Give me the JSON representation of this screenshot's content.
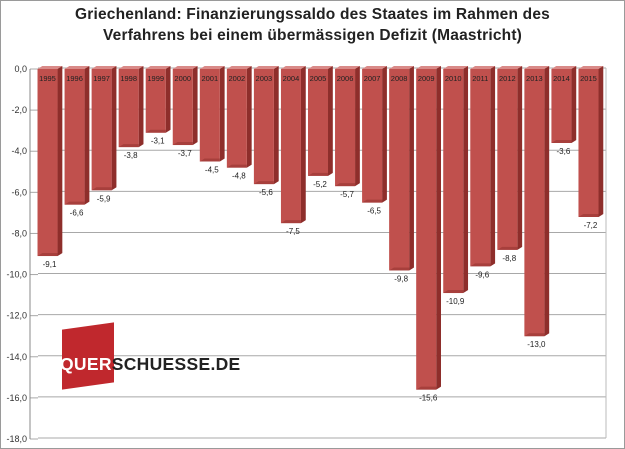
{
  "chart_data": {
    "type": "bar",
    "title_lines": [
      "Griechenland: Finanzierungssaldo des Staates im Rahmen des",
      "Verfahrens bei einem übermässigen Defizit (Maastricht)"
    ],
    "categories": [
      "1995",
      "1996",
      "1997",
      "1998",
      "1999",
      "2000",
      "2001",
      "2002",
      "2003",
      "2004",
      "2005",
      "2006",
      "2007",
      "2008",
      "2009",
      "2010",
      "2011",
      "2012",
      "2013",
      "2014",
      "2015"
    ],
    "values": [
      -9.1,
      -6.6,
      -5.9,
      -3.8,
      -3.1,
      -3.7,
      -4.5,
      -4.8,
      -5.6,
      -7.5,
      -5.2,
      -5.7,
      -6.5,
      -9.8,
      -15.6,
      -10.9,
      -9.6,
      -8.8,
      -13.0,
      -3.6,
      -7.2
    ],
    "value_labels": [
      "-9,1",
      "-6,6",
      "-5,9",
      "-3,8",
      "-3,1",
      "-3,7",
      "-4,5",
      "-4,8",
      "-5,6",
      "-7,5",
      "-5,2",
      "-5,7",
      "-6,5",
      "-9,8",
      "-15,6",
      "-10,9",
      "-9,6",
      "-8,8",
      "-13,0",
      "-3,6",
      "-7,2"
    ],
    "ylim": [
      -18,
      0
    ],
    "yticks": [
      0,
      -2,
      -4,
      -6,
      -8,
      -10,
      -12,
      -14,
      -16,
      -18
    ],
    "ytick_labels": [
      "0,0",
      "-2,0",
      "-4,0",
      "-6,0",
      "-8,0",
      "-10,0",
      "-12,0",
      "-14,0",
      "-16,0",
      "-18,0"
    ],
    "xlabel": "",
    "ylabel": "",
    "grid": true,
    "colors": {
      "bar_front": "#c0504d",
      "bar_side": "#8e2e2b",
      "bar_top": "#d98a88",
      "grid": "#a8a8a8"
    }
  },
  "watermark": {
    "part1": "QUER",
    "part2": "SCHUESSE.DE",
    "accent": "#c0282d"
  }
}
